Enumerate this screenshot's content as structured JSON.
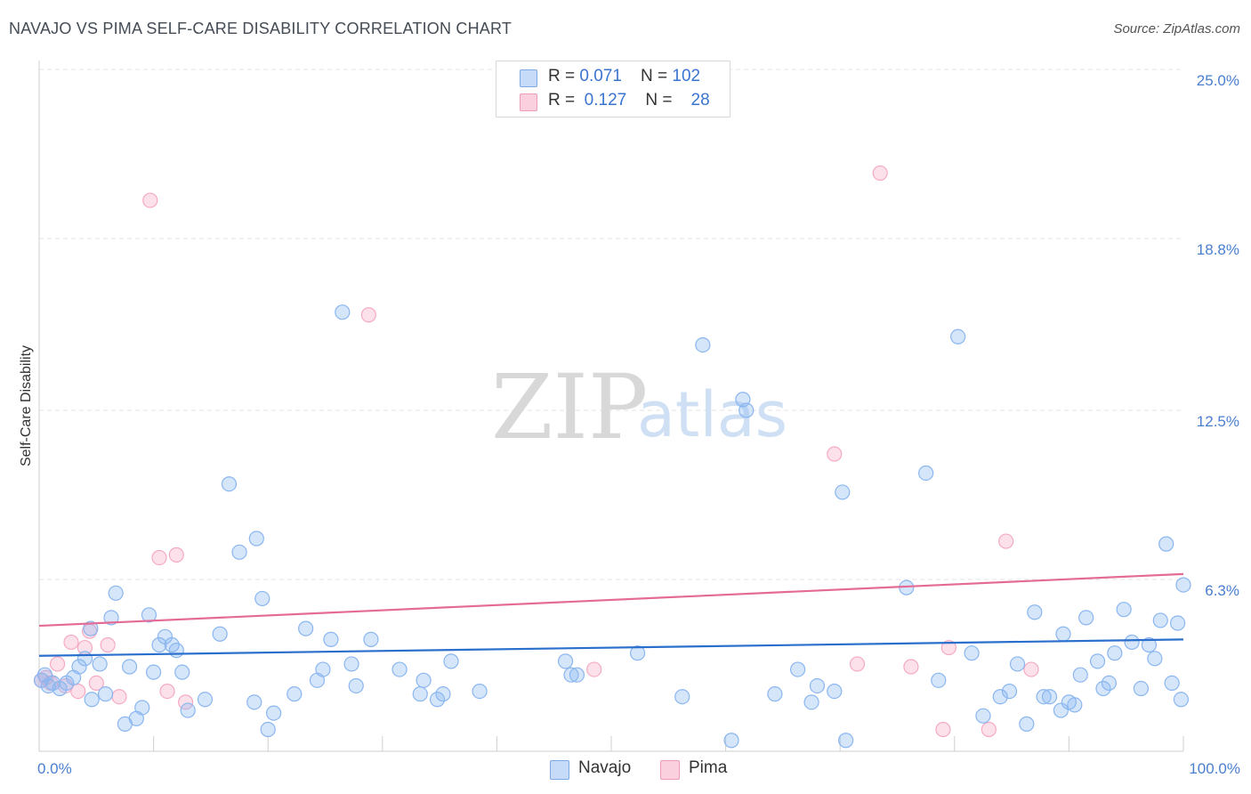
{
  "chart_data": {
    "type": "scatter",
    "title": "NAVAJO VS PIMA SELF-CARE DISABILITY CORRELATION CHART",
    "source": "Source: ZipAtlas.com",
    "ylabel": "Self-Care Disability",
    "xlim": [
      0,
      100
    ],
    "ylim": [
      0,
      25
    ],
    "x_tick_labels": [
      "0.0%",
      "100.0%"
    ],
    "y_ticks": [
      {
        "value": 6.3,
        "label": "6.3%"
      },
      {
        "value": 12.5,
        "label": "12.5%"
      },
      {
        "value": 18.8,
        "label": "18.8%"
      },
      {
        "value": 25.0,
        "label": "25.0%"
      }
    ],
    "grid": true,
    "watermark": {
      "part1": "ZIP",
      "part2": "atlas"
    },
    "series": [
      {
        "name": "Navajo",
        "color": "#8ab6f0",
        "line_color": "#2a6fcc",
        "r": "0.071",
        "n": "102",
        "trend": [
          [
            0,
            3.5
          ],
          [
            100,
            4.1
          ]
        ],
        "points": [
          [
            0.2,
            2.6
          ],
          [
            0.5,
            2.8
          ],
          [
            0.8,
            2.4
          ],
          [
            1.2,
            2.5
          ],
          [
            1.8,
            2.3
          ],
          [
            2.4,
            2.5
          ],
          [
            3.0,
            2.7
          ],
          [
            3.5,
            3.1
          ],
          [
            4.0,
            3.4
          ],
          [
            4.5,
            4.5
          ],
          [
            4.6,
            1.9
          ],
          [
            5.3,
            3.2
          ],
          [
            5.8,
            2.1
          ],
          [
            6.3,
            4.9
          ],
          [
            6.7,
            5.8
          ],
          [
            7.5,
            1.0
          ],
          [
            7.9,
            3.1
          ],
          [
            8.5,
            1.2
          ],
          [
            9.0,
            1.6
          ],
          [
            9.6,
            5.0
          ],
          [
            10.0,
            2.9
          ],
          [
            10.5,
            3.9
          ],
          [
            11.0,
            4.2
          ],
          [
            11.6,
            3.9
          ],
          [
            12.0,
            3.7
          ],
          [
            12.5,
            2.9
          ],
          [
            13.0,
            1.5
          ],
          [
            14.5,
            1.9
          ],
          [
            15.8,
            4.3
          ],
          [
            16.6,
            9.8
          ],
          [
            17.5,
            7.3
          ],
          [
            18.8,
            1.8
          ],
          [
            19.0,
            7.8
          ],
          [
            19.5,
            5.6
          ],
          [
            20.0,
            0.8
          ],
          [
            20.5,
            1.4
          ],
          [
            22.3,
            2.1
          ],
          [
            23.3,
            4.5
          ],
          [
            24.3,
            2.6
          ],
          [
            24.8,
            3.0
          ],
          [
            25.5,
            4.1
          ],
          [
            26.5,
            16.1
          ],
          [
            27.3,
            3.2
          ],
          [
            27.7,
            2.4
          ],
          [
            29.0,
            4.1
          ],
          [
            31.5,
            3.0
          ],
          [
            33.3,
            2.1
          ],
          [
            33.6,
            2.6
          ],
          [
            34.8,
            1.9
          ],
          [
            35.3,
            2.1
          ],
          [
            36.0,
            3.3
          ],
          [
            38.5,
            2.2
          ],
          [
            46.0,
            3.3
          ],
          [
            46.5,
            2.8
          ],
          [
            47.0,
            2.8
          ],
          [
            52.3,
            3.6
          ],
          [
            56.2,
            2.0
          ],
          [
            58.0,
            14.9
          ],
          [
            60.5,
            0.4
          ],
          [
            61.5,
            12.9
          ],
          [
            61.8,
            12.5
          ],
          [
            64.3,
            2.1
          ],
          [
            66.3,
            3.0
          ],
          [
            67.5,
            1.8
          ],
          [
            68.0,
            2.4
          ],
          [
            69.5,
            2.2
          ],
          [
            70.2,
            9.5
          ],
          [
            70.5,
            0.4
          ],
          [
            75.8,
            6.0
          ],
          [
            77.5,
            10.2
          ],
          [
            78.6,
            2.6
          ],
          [
            80.3,
            15.2
          ],
          [
            81.5,
            3.6
          ],
          [
            82.5,
            1.3
          ],
          [
            84.0,
            2.0
          ],
          [
            84.8,
            2.2
          ],
          [
            85.5,
            3.2
          ],
          [
            86.3,
            1.0
          ],
          [
            87.0,
            5.1
          ],
          [
            87.8,
            2.0
          ],
          [
            88.3,
            2.0
          ],
          [
            89.3,
            1.5
          ],
          [
            89.5,
            4.3
          ],
          [
            90.0,
            1.8
          ],
          [
            90.5,
            1.7
          ],
          [
            91.0,
            2.8
          ],
          [
            91.5,
            4.9
          ],
          [
            92.5,
            3.3
          ],
          [
            93.0,
            2.3
          ],
          [
            93.5,
            2.5
          ],
          [
            94.0,
            3.6
          ],
          [
            94.8,
            5.2
          ],
          [
            95.5,
            4.0
          ],
          [
            96.3,
            2.3
          ],
          [
            97.0,
            3.9
          ],
          [
            97.5,
            3.4
          ],
          [
            98.0,
            4.8
          ],
          [
            98.5,
            7.6
          ],
          [
            99.0,
            2.5
          ],
          [
            99.5,
            4.7
          ],
          [
            99.8,
            1.9
          ],
          [
            100.0,
            6.1
          ]
        ]
      },
      {
        "name": "Pima",
        "color": "#f5aac4",
        "line_color": "#e46b95",
        "r": "0.127",
        "n": "28",
        "trend": [
          [
            0,
            4.6
          ],
          [
            100,
            6.5
          ]
        ],
        "points": [
          [
            0.2,
            2.6
          ],
          [
            0.6,
            2.7
          ],
          [
            1.0,
            2.5
          ],
          [
            1.6,
            3.2
          ],
          [
            2.3,
            2.4
          ],
          [
            2.8,
            4.0
          ],
          [
            3.4,
            2.2
          ],
          [
            4.0,
            3.8
          ],
          [
            4.4,
            4.4
          ],
          [
            5.0,
            2.5
          ],
          [
            6.0,
            3.9
          ],
          [
            7.0,
            2.0
          ],
          [
            9.7,
            20.2
          ],
          [
            10.5,
            7.1
          ],
          [
            11.2,
            2.2
          ],
          [
            12.0,
            7.2
          ],
          [
            12.8,
            1.8
          ],
          [
            28.8,
            16.0
          ],
          [
            48.5,
            3.0
          ],
          [
            69.5,
            10.9
          ],
          [
            71.5,
            3.2
          ],
          [
            73.5,
            21.2
          ],
          [
            76.2,
            3.1
          ],
          [
            79.0,
            0.8
          ],
          [
            79.5,
            3.8
          ],
          [
            83.0,
            0.8
          ],
          [
            84.5,
            7.7
          ],
          [
            86.7,
            3.0
          ]
        ]
      }
    ]
  }
}
